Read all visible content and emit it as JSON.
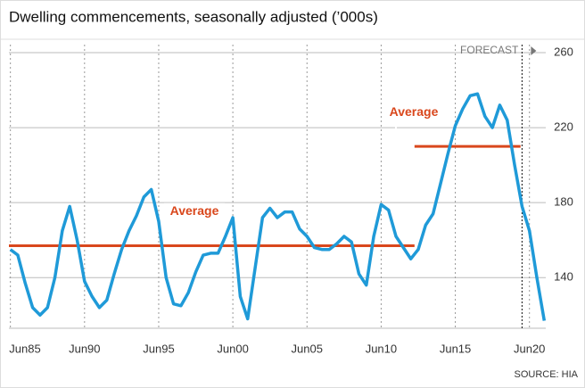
{
  "chart_data": {
    "type": "line",
    "title": "Dwelling commencements, seasonally adjusted (’000s)",
    "source": "SOURCE: HIA",
    "forecast": {
      "label": "FORECAST",
      "x": 2020.0
    },
    "x": [
      1985.5,
      1986,
      1986.5,
      1987,
      1987.5,
      1988,
      1988.5,
      1989,
      1989.5,
      1990,
      1990.5,
      1991,
      1991.5,
      1992,
      1992.5,
      1993,
      1993.5,
      1994,
      1994.5,
      1995,
      1995.5,
      1996,
      1996.5,
      1997,
      1997.5,
      1998,
      1998.5,
      1999,
      1999.5,
      2000,
      2000.5,
      2001,
      2001.5,
      2002,
      2002.5,
      2003,
      2003.5,
      2004,
      2004.5,
      2005,
      2005.5,
      2006,
      2006.5,
      2007,
      2007.5,
      2008,
      2008.5,
      2009,
      2009.5,
      2010,
      2010.5,
      2011,
      2011.5,
      2012,
      2012.5,
      2013,
      2013.5,
      2014,
      2014.5,
      2015,
      2015.5,
      2016,
      2016.5,
      2017,
      2017.5,
      2018,
      2018.5,
      2019,
      2019.5,
      2020,
      2020.5,
      2021,
      2021.5
    ],
    "series": [
      {
        "name": "Dwelling commencements",
        "color": "#1f9ad8",
        "values": [
          155,
          152,
          137,
          124,
          120,
          124,
          140,
          165,
          178,
          160,
          138,
          130,
          124,
          128,
          142,
          155,
          165,
          173,
          183,
          187,
          170,
          140,
          126,
          125,
          132,
          143,
          152,
          153,
          153,
          162,
          172,
          130,
          118,
          145,
          172,
          177,
          172,
          175,
          175,
          166,
          162,
          156,
          155,
          155,
          158,
          162,
          159,
          142,
          136,
          162,
          179,
          176,
          162,
          156,
          150,
          155,
          168,
          174,
          190,
          206,
          221,
          230,
          237,
          238,
          226,
          220,
          232,
          224,
          200,
          178,
          165,
          140,
          117
        ]
      }
    ],
    "averages": [
      {
        "label": "Average",
        "value": 157,
        "x": [
          1985.4,
          2012.75
        ],
        "color": "#d9471c"
      },
      {
        "label": "Average",
        "value": 210,
        "x": [
          2012.75,
          2019.9
        ],
        "color": "#d9471c"
      }
    ],
    "xlim": [
      1985.4,
      2021.6
    ],
    "xticks": [
      {
        "value": 1985.5,
        "label": "Jun85"
      },
      {
        "value": 1990.5,
        "label": "Jun90"
      },
      {
        "value": 1995.5,
        "label": "Jun95"
      },
      {
        "value": 2000.5,
        "label": "Jun00"
      },
      {
        "value": 2005.5,
        "label": "Jun05"
      },
      {
        "value": 2010.5,
        "label": "Jun10"
      },
      {
        "value": 2015.5,
        "label": "Jun15"
      },
      {
        "value": 2020.5,
        "label": "Jun20"
      }
    ],
    "ylim": [
      113,
      260
    ],
    "yticks": [
      140,
      180,
      220,
      260
    ],
    "grid": true
  }
}
